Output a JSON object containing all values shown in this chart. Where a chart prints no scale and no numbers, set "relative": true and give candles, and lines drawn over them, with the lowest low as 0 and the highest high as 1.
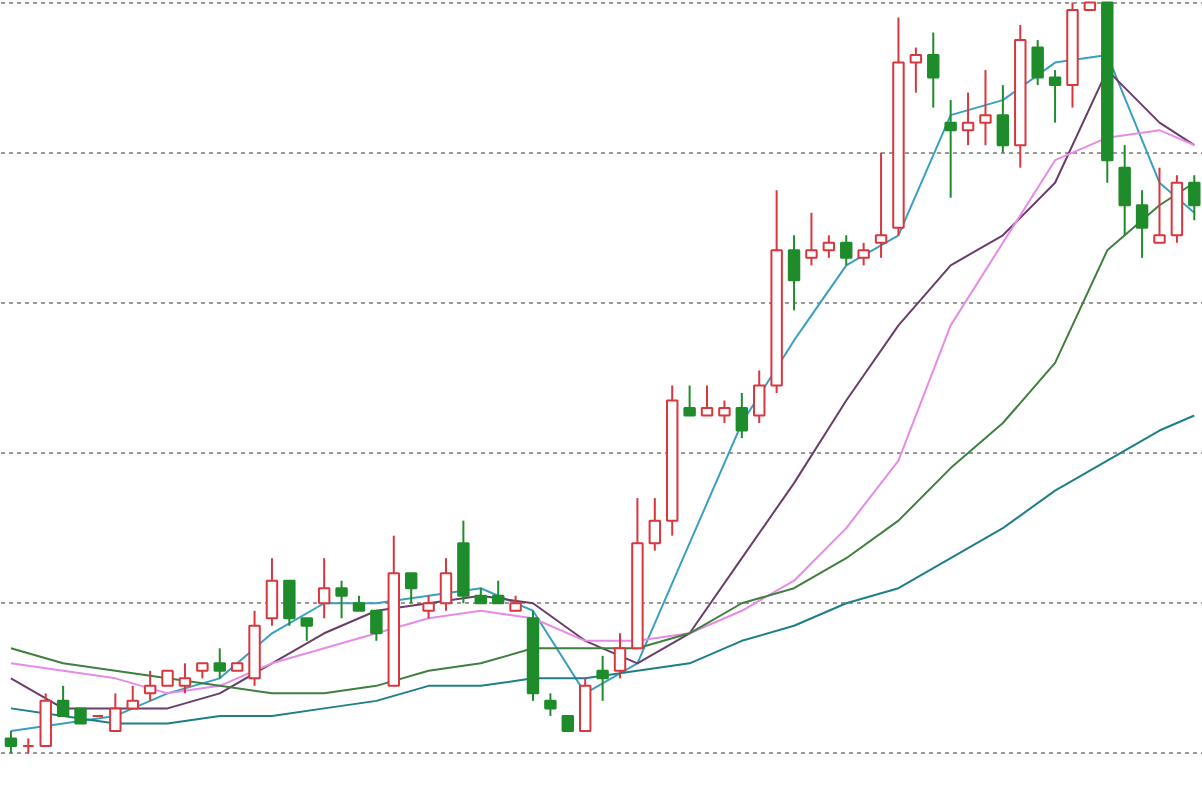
{
  "chart_data": {
    "type": "candlestick",
    "relative": true,
    "grid": "y",
    "categories": [
      null,
      null,
      null,
      null,
      null,
      null,
      null,
      null,
      null,
      null,
      null,
      null,
      null,
      null,
      null,
      null,
      null,
      null,
      null,
      null,
      null,
      null,
      null,
      null,
      null,
      null,
      null,
      null,
      null,
      null,
      null,
      null,
      null,
      null,
      null,
      null,
      null,
      null,
      null,
      null,
      null,
      null,
      null,
      null,
      null,
      null,
      null,
      null,
      null,
      null,
      null,
      null,
      null,
      null,
      null,
      null,
      null,
      null,
      null,
      null,
      null,
      null,
      null,
      null,
      null,
      null,
      null,
      null,
      null
    ],
    "ohlc": [
      [
        0.02,
        0.03,
        0,
        0.01
      ],
      [
        0.01,
        0.02,
        0,
        0.01
      ],
      [
        0.01,
        0.08,
        0.01,
        0.07
      ],
      [
        0.07,
        0.09,
        0.05,
        0.05
      ],
      [
        0.06,
        0.06,
        0.04,
        0.04
      ],
      [
        0.05,
        0.05,
        0.05,
        0.05
      ],
      [
        0.03,
        0.08,
        0.03,
        0.06
      ],
      [
        0.06,
        0.09,
        0.06,
        0.07
      ],
      [
        0.08,
        0.11,
        0.07,
        0.09
      ],
      [
        0.09,
        0.11,
        0.09,
        0.11
      ],
      [
        0.09,
        0.12,
        0.08,
        0.1
      ],
      [
        0.11,
        0.12,
        0.1,
        0.12
      ],
      [
        0.12,
        0.14,
        0.1,
        0.11
      ],
      [
        0.11,
        0.12,
        0.11,
        0.12
      ],
      [
        0.1,
        0.19,
        0.09,
        0.17
      ],
      [
        0.18,
        0.26,
        0.17,
        0.23
      ],
      [
        0.23,
        0.23,
        0.17,
        0.18
      ],
      [
        0.18,
        0.18,
        0.15,
        0.17
      ],
      [
        0.2,
        0.26,
        0.18,
        0.22
      ],
      [
        0.22,
        0.23,
        0.18,
        0.21
      ],
      [
        0.2,
        0.21,
        0.19,
        0.19
      ],
      [
        0.19,
        0.19,
        0.15,
        0.16
      ],
      [
        0.09,
        0.29,
        0.09,
        0.24
      ],
      [
        0.24,
        0.24,
        0.2,
        0.22
      ],
      [
        0.19,
        0.21,
        0.18,
        0.2
      ],
      [
        0.2,
        0.26,
        0.19,
        0.24
      ],
      [
        0.28,
        0.31,
        0.2,
        0.21
      ],
      [
        0.21,
        0.22,
        0.2,
        0.2
      ],
      [
        0.21,
        0.23,
        0.2,
        0.2
      ],
      [
        0.19,
        0.21,
        0.19,
        0.2
      ],
      [
        0.18,
        0.19,
        0.07,
        0.08
      ],
      [
        0.07,
        0.08,
        0.05,
        0.06
      ],
      [
        0.05,
        0.05,
        0.03,
        0.03
      ],
      [
        0.03,
        0.1,
        0.03,
        0.09
      ],
      [
        0.11,
        0.13,
        0.07,
        0.1
      ],
      [
        0.11,
        0.16,
        0.1,
        0.14
      ],
      [
        0.14,
        0.34,
        0.14,
        0.28
      ],
      [
        0.28,
        0.34,
        0.27,
        0.31
      ],
      [
        0.31,
        0.49,
        0.29,
        0.47
      ],
      [
        0.46,
        0.49,
        0.45,
        0.45
      ],
      [
        0.45,
        0.49,
        0.45,
        0.46
      ],
      [
        0.45,
        0.47,
        0.44,
        0.46
      ],
      [
        0.46,
        0.48,
        0.42,
        0.43
      ],
      [
        0.45,
        0.51,
        0.44,
        0.49
      ],
      [
        0.49,
        0.75,
        0.48,
        0.67
      ],
      [
        0.67,
        0.69,
        0.59,
        0.63
      ],
      [
        0.66,
        0.72,
        0.65,
        0.67
      ],
      [
        0.67,
        0.69,
        0.66,
        0.68
      ],
      [
        0.68,
        0.69,
        0.65,
        0.66
      ],
      [
        0.66,
        0.68,
        0.65,
        0.67
      ],
      [
        0.68,
        0.8,
        0.66,
        0.69
      ],
      [
        0.7,
        0.98,
        0.69,
        0.92
      ],
      [
        0.92,
        0.94,
        0.88,
        0.93
      ],
      [
        0.93,
        0.96,
        0.86,
        0.9
      ],
      [
        0.84,
        0.87,
        0.74,
        0.83
      ],
      [
        0.83,
        0.88,
        0.81,
        0.84
      ],
      [
        0.84,
        0.91,
        0.81,
        0.85
      ],
      [
        0.85,
        0.89,
        0.8,
        0.81
      ],
      [
        0.81,
        0.97,
        0.78,
        0.95
      ],
      [
        0.94,
        0.95,
        0.89,
        0.9
      ],
      [
        0.9,
        0.91,
        0.84,
        0.89
      ],
      [
        0.89,
        1.0,
        0.86,
        0.99
      ],
      [
        0.99,
        1.0,
        0.99,
        1.0
      ],
      [
        1.0,
        1.0,
        0.76,
        0.79
      ],
      [
        0.78,
        0.81,
        0.69,
        0.73
      ],
      [
        0.73,
        0.75,
        0.66,
        0.7
      ],
      [
        0.68,
        0.78,
        0.68,
        0.69
      ],
      [
        0.69,
        0.77,
        0.68,
        0.76
      ],
      [
        0.76,
        0.77,
        0.71,
        0.73
      ]
    ],
    "colors": [
      "#1e8c2a",
      "#d9363e",
      "#d9363e",
      "#1e8c2a",
      "#1e8c2a",
      "#d9363e",
      "#d9363e",
      "#d9363e",
      "#d9363e",
      "#d9363e",
      "#d9363e",
      "#d9363e",
      "#1e8c2a",
      "#d9363e",
      "#d9363e",
      "#d9363e",
      "#1e8c2a",
      "#1e8c2a",
      "#d9363e",
      "#1e8c2a",
      "#1e8c2a",
      "#1e8c2a",
      "#d9363e",
      "#1e8c2a",
      "#d9363e",
      "#d9363e",
      "#1e8c2a",
      "#1e8c2a",
      "#1e8c2a",
      "#d9363e",
      "#1e8c2a",
      "#1e8c2a",
      "#1e8c2a",
      "#d9363e",
      "#1e8c2a",
      "#d9363e",
      "#d9363e",
      "#d9363e",
      "#d9363e",
      "#1e8c2a",
      "#d9363e",
      "#d9363e",
      "#1e8c2a",
      "#d9363e",
      "#d9363e",
      "#1e8c2a",
      "#d9363e",
      "#d9363e",
      "#1e8c2a",
      "#d9363e",
      "#d9363e",
      "#d9363e",
      "#d9363e",
      "#1e8c2a",
      "#1e8c2a",
      "#d9363e",
      "#d9363e",
      "#1e8c2a",
      "#d9363e",
      "#1e8c2a",
      "#1e8c2a",
      "#d9363e",
      "#d9363e",
      "#1e8c2a",
      "#1e8c2a",
      "#1e8c2a",
      "#d9363e",
      "#d9363e",
      "#1e8c2a"
    ],
    "series": [
      {
        "type": "line",
        "color": "#3a9fc0",
        "values": [
          0.03,
          null,
          null,
          0.04,
          null,
          null,
          0.05,
          null,
          null,
          0.08,
          null,
          null,
          0.1,
          null,
          null,
          0.16,
          null,
          null,
          0.2,
          null,
          null,
          0.2,
          null,
          null,
          0.21,
          null,
          null,
          0.22,
          null,
          null,
          0.19,
          null,
          null,
          0.08,
          null,
          null,
          0.12,
          null,
          null,
          0.28,
          null,
          null,
          0.44,
          null,
          null,
          0.55,
          null,
          null,
          0.65,
          null,
          null,
          0.69,
          null,
          null,
          0.85,
          null,
          null,
          0.87,
          null,
          null,
          0.92,
          null,
          null,
          0.93,
          null,
          null,
          0.76,
          null,
          0.72
        ]
      },
      {
        "type": "line",
        "color": "#6a3d6a",
        "values": [
          0.1,
          null,
          null,
          0.06,
          null,
          null,
          0.06,
          null,
          null,
          0.06,
          null,
          null,
          0.08,
          null,
          null,
          0.12,
          null,
          null,
          0.16,
          null,
          null,
          0.19,
          null,
          null,
          0.2,
          null,
          null,
          0.21,
          null,
          null,
          0.2,
          null,
          null,
          0.15,
          null,
          null,
          0.12,
          null,
          null,
          0.16,
          null,
          null,
          0.26,
          null,
          null,
          0.36,
          null,
          null,
          0.47,
          null,
          null,
          0.57,
          null,
          null,
          0.65,
          null,
          null,
          0.69,
          null,
          null,
          0.76,
          null,
          null,
          0.91,
          null,
          null,
          0.84,
          null,
          0.81
        ]
      },
      {
        "type": "line",
        "color": "#e68be6",
        "values": [
          0.12,
          null,
          null,
          0.11,
          null,
          null,
          0.1,
          null,
          null,
          0.08,
          null,
          null,
          0.09,
          null,
          null,
          0.12,
          null,
          null,
          0.14,
          null,
          null,
          0.16,
          null,
          null,
          0.18,
          null,
          null,
          0.19,
          null,
          null,
          0.18,
          null,
          null,
          0.15,
          null,
          null,
          0.15,
          null,
          null,
          0.16,
          null,
          null,
          0.19,
          null,
          null,
          0.23,
          null,
          null,
          0.3,
          null,
          null,
          0.39,
          null,
          null,
          0.57,
          null,
          null,
          0.68,
          null,
          null,
          0.79,
          null,
          null,
          0.82,
          null,
          null,
          0.83,
          null,
          0.81
        ]
      },
      {
        "type": "line",
        "color": "#3f7f3f",
        "values": [
          0.14,
          null,
          null,
          0.12,
          null,
          null,
          0.11,
          null,
          null,
          0.1,
          null,
          null,
          0.09,
          null,
          null,
          0.08,
          null,
          null,
          0.08,
          null,
          null,
          0.09,
          null,
          null,
          0.11,
          null,
          null,
          0.12,
          null,
          null,
          0.14,
          null,
          null,
          0.14,
          null,
          null,
          0.14,
          null,
          null,
          0.16,
          null,
          null,
          0.2,
          null,
          null,
          0.22,
          null,
          null,
          0.26,
          null,
          null,
          0.31,
          null,
          null,
          0.38,
          null,
          null,
          0.44,
          null,
          null,
          0.52,
          null,
          null,
          0.67,
          null,
          null,
          0.73,
          null,
          0.76
        ]
      },
      {
        "type": "line",
        "color": "#1f7f86",
        "values": [
          0.06,
          null,
          null,
          0.05,
          null,
          null,
          0.04,
          null,
          null,
          0.04,
          null,
          null,
          0.05,
          null,
          null,
          0.05,
          null,
          null,
          0.06,
          null,
          null,
          0.07,
          null,
          null,
          0.09,
          null,
          null,
          0.09,
          null,
          null,
          0.1,
          null,
          null,
          0.1,
          null,
          null,
          0.11,
          null,
          null,
          0.12,
          null,
          null,
          0.15,
          null,
          null,
          0.17,
          null,
          null,
          0.2,
          null,
          null,
          0.22,
          null,
          null,
          0.26,
          null,
          null,
          0.3,
          null,
          null,
          0.35,
          null,
          null,
          0.39,
          null,
          null,
          0.43,
          null,
          0.45
        ]
      }
    ]
  }
}
